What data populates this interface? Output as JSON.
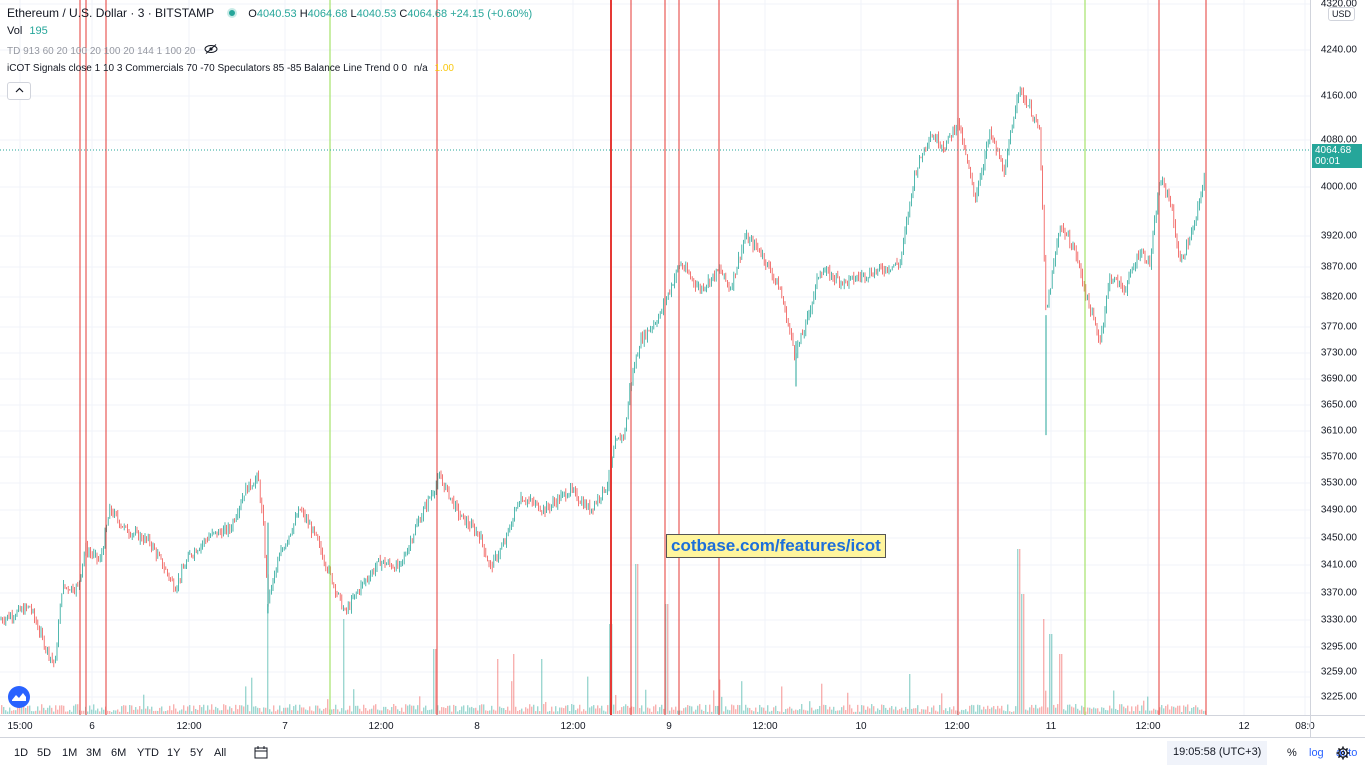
{
  "legend": {
    "symbol": "Ethereum / U.S. Dollar · 3 · BITSTAMP",
    "open_label": "O",
    "open": "4040.53",
    "high_label": "H",
    "high": "4064.68",
    "low_label": "L",
    "low": "4040.53",
    "close_label": "C",
    "close": "4064.68",
    "change": "+24.15 (+0.60%)",
    "vol_label": "Vol",
    "vol": "195",
    "td_indicator": "TD 913 60 20 100 20 100 20 144 1 100 20",
    "icot_indicator": "iCOT Signals close 1 10 3 Commercials 70 -70 Speculators 85 -85 Balance Line Trend 0 0",
    "icot_na": "n/a",
    "icot_value": "1.00",
    "collapse_icon": "chevron-up-icon",
    "visibility_icon": "eye-off-icon"
  },
  "price_axis": {
    "currency_button": "USD",
    "current_price": "4064.68",
    "countdown": "00:01",
    "ticks": [
      "4320.00",
      "4240.00",
      "4160.00",
      "4080.00",
      "4000.00",
      "3920.00",
      "3870.00",
      "3820.00",
      "3770.00",
      "3730.00",
      "3690.00",
      "3650.00",
      "3610.00",
      "3570.00",
      "3530.00",
      "3490.00",
      "3450.00",
      "3410.00",
      "3370.00",
      "3330.00",
      "3295.00",
      "3259.00",
      "3225.00"
    ]
  },
  "time_axis": {
    "labels": [
      "15:00",
      "6",
      "12:00",
      "7",
      "12:00",
      "8",
      "12:00",
      "9",
      "12:00",
      "10",
      "12:00",
      "11",
      "12:00",
      "12",
      "08:0"
    ]
  },
  "watermark": "cotbase.com/features/icot",
  "bottom_bar": {
    "ranges": [
      "1D",
      "5D",
      "1M",
      "3M",
      "6M",
      "YTD",
      "1Y",
      "5Y",
      "All"
    ],
    "compare_icon": "calendar-range-icon",
    "clock": "19:05:58 (UTC+3)",
    "percent": "%",
    "log": "log",
    "auto": "auto",
    "settings_icon": "gear-icon"
  },
  "colors": {
    "up": "#26a69a",
    "down": "#ef5350",
    "signal_red": "#e53935",
    "signal_green": "#a5e36b",
    "grid": "#f0f3fa"
  },
  "chart_data": {
    "type": "candlestick",
    "symbol": "ETH/USD",
    "ylim": [
      3200,
      4320
    ],
    "price_path": [
      [
        0,
        3370
      ],
      [
        30,
        3390
      ],
      [
        45,
        3330
      ],
      [
        55,
        3300
      ],
      [
        62,
        3420
      ],
      [
        78,
        3420
      ],
      [
        85,
        3480
      ],
      [
        100,
        3460
      ],
      [
        110,
        3540
      ],
      [
        125,
        3510
      ],
      [
        150,
        3490
      ],
      [
        175,
        3420
      ],
      [
        190,
        3470
      ],
      [
        210,
        3500
      ],
      [
        230,
        3510
      ],
      [
        245,
        3570
      ],
      [
        258,
        3590
      ],
      [
        263,
        3520
      ],
      [
        268,
        3400
      ],
      [
        280,
        3470
      ],
      [
        300,
        3540
      ],
      [
        315,
        3500
      ],
      [
        330,
        3440
      ],
      [
        345,
        3380
      ],
      [
        360,
        3420
      ],
      [
        380,
        3460
      ],
      [
        400,
        3450
      ],
      [
        415,
        3510
      ],
      [
        430,
        3560
      ],
      [
        440,
        3590
      ],
      [
        460,
        3530
      ],
      [
        480,
        3500
      ],
      [
        490,
        3450
      ],
      [
        505,
        3490
      ],
      [
        520,
        3560
      ],
      [
        545,
        3540
      ],
      [
        570,
        3570
      ],
      [
        590,
        3540
      ],
      [
        608,
        3580
      ],
      [
        615,
        3640
      ],
      [
        625,
        3660
      ],
      [
        630,
        3730
      ],
      [
        640,
        3800
      ],
      [
        660,
        3840
      ],
      [
        680,
        3920
      ],
      [
        700,
        3880
      ],
      [
        720,
        3910
      ],
      [
        730,
        3880
      ],
      [
        745,
        3960
      ],
      [
        760,
        3940
      ],
      [
        780,
        3880
      ],
      [
        795,
        3780
      ],
      [
        805,
        3820
      ],
      [
        820,
        3910
      ],
      [
        845,
        3890
      ],
      [
        860,
        3900
      ],
      [
        880,
        3910
      ],
      [
        900,
        3920
      ],
      [
        915,
        4060
      ],
      [
        930,
        4120
      ],
      [
        945,
        4100
      ],
      [
        958,
        4140
      ],
      [
        975,
        4020
      ],
      [
        990,
        4120
      ],
      [
        1005,
        4060
      ],
      [
        1018,
        4190
      ],
      [
        1030,
        4160
      ],
      [
        1040,
        4120
      ],
      [
        1046,
        3840
      ],
      [
        1060,
        3980
      ],
      [
        1075,
        3940
      ],
      [
        1088,
        3860
      ],
      [
        1100,
        3800
      ],
      [
        1110,
        3900
      ],
      [
        1125,
        3880
      ],
      [
        1140,
        3940
      ],
      [
        1150,
        3920
      ],
      [
        1160,
        4050
      ],
      [
        1170,
        4020
      ],
      [
        1180,
        3920
      ],
      [
        1195,
        3980
      ],
      [
        1205,
        4060
      ]
    ],
    "last_price": 4064.68,
    "signal_lines": {
      "red_x": [
        80,
        86,
        106,
        437,
        611,
        631,
        665,
        679,
        719,
        958,
        1159,
        1206
      ],
      "green_x": [
        330,
        1085
      ]
    }
  }
}
